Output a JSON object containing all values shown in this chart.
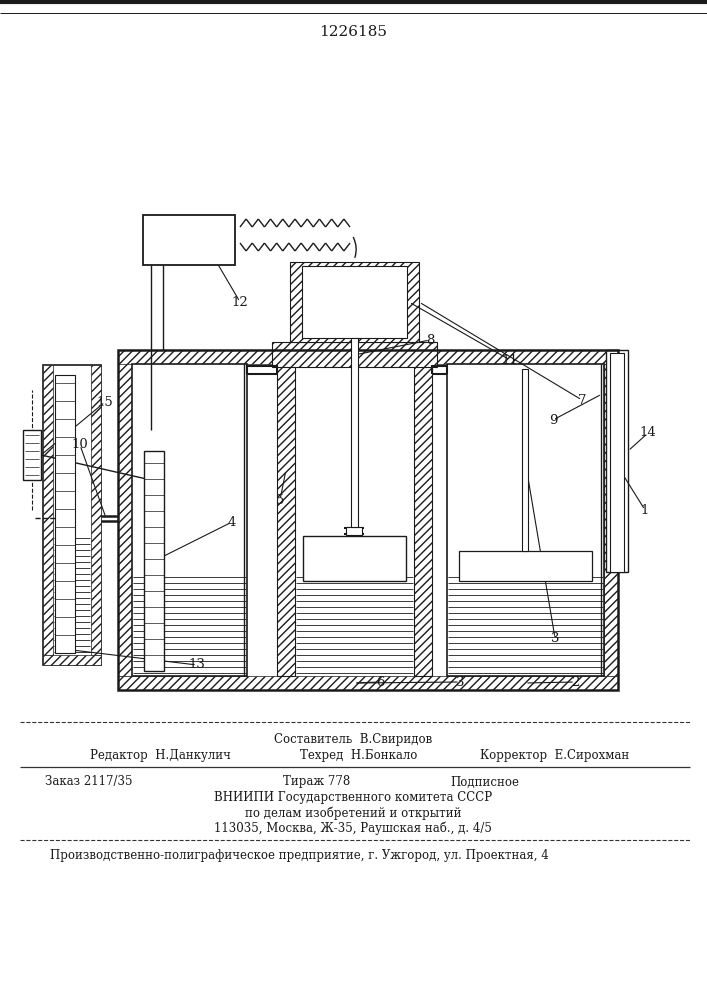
{
  "title": "1226185",
  "bg": "#ffffff",
  "lc": "#1a1a1a",
  "footer_composer": "Составитель  В.Свиридов",
  "footer_editor": "Редактор  Н.Данкулич",
  "footer_tech": "Техред  Н.Бонкало",
  "footer_corr": "Корректор  Е.Сирохман",
  "footer_order": "Заказ 2117/35",
  "footer_tir": "Тираж 778",
  "footer_sub": "Подписное",
  "footer_vn1": "ВНИИПИ Государственного комитета СССР",
  "footer_vn2": "по делам изобретений и открытий",
  "footer_addr": "113035, Москва, Ж-35, Раушская наб., д. 4/5",
  "footer_prod": "Производственно-полиграфическое предприятие, г. Ужгород, ул. Проектная, 4"
}
